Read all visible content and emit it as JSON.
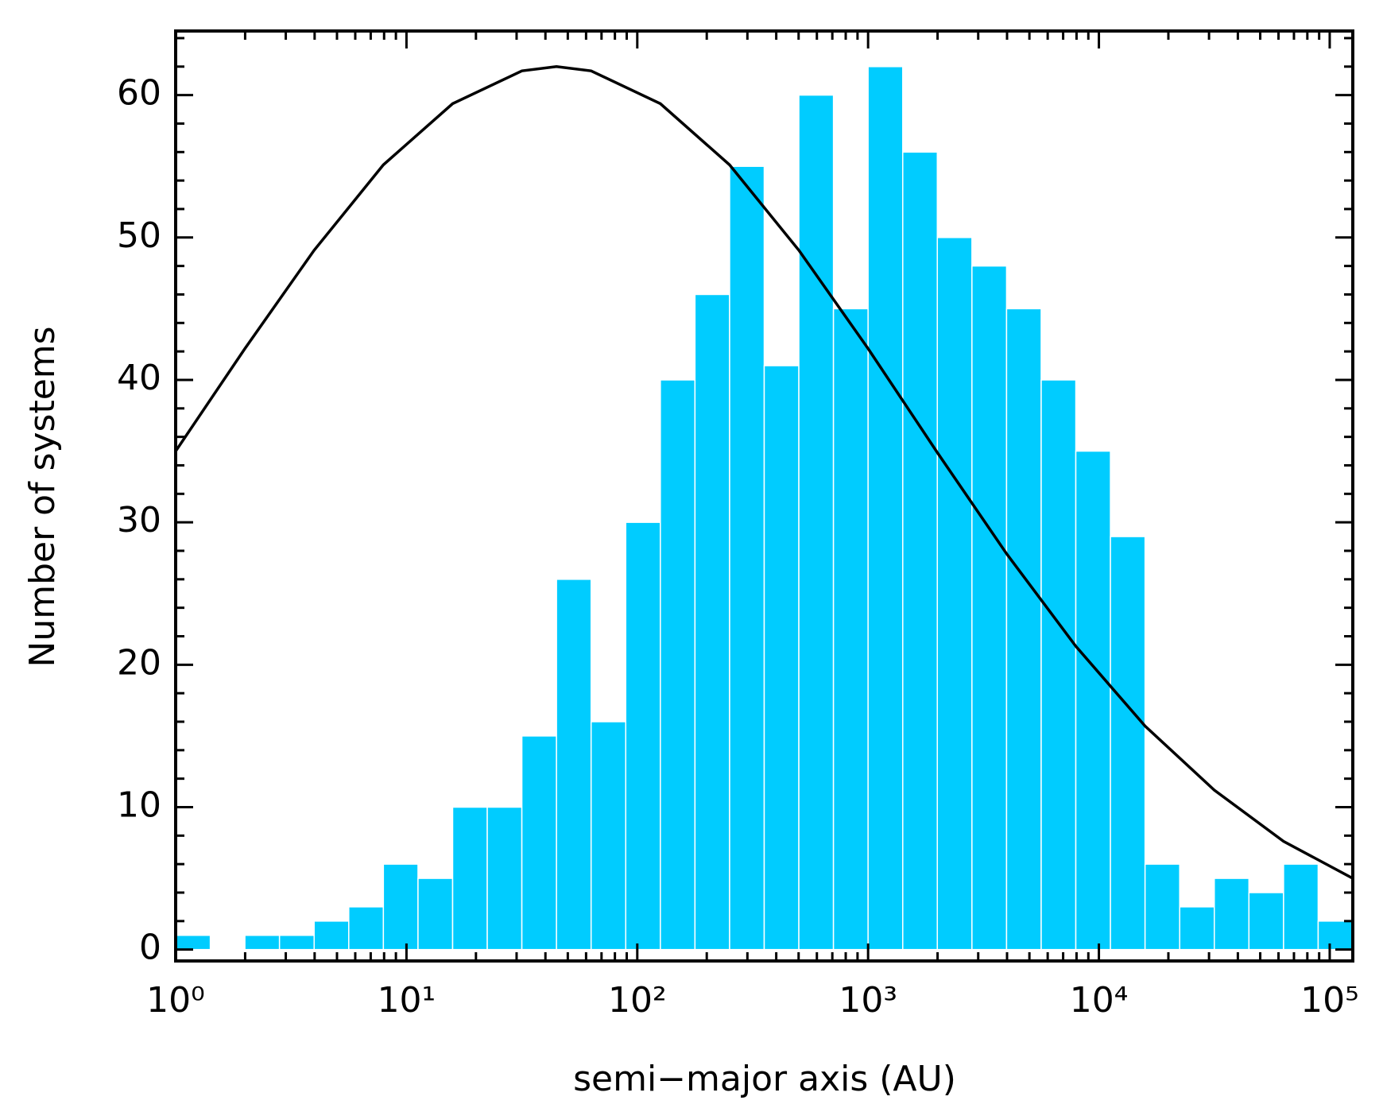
{
  "chart_data": {
    "type": "histogram",
    "xlabel": "semi−major axis (AU)",
    "ylabel": "Number of systems",
    "xscale": "log",
    "color": "#00ccff",
    "bins": [
      1,
      1.413,
      1.995,
      2.818,
      3.981,
      5.623,
      7.943,
      11.22,
      15.85,
      22.39,
      31.62,
      44.67,
      63.1,
      89.13,
      125.9,
      177.8,
      251.2,
      354.8,
      501.2,
      707.9,
      1000,
      1413,
      1995,
      2818,
      3981,
      5623,
      7943,
      11220,
      15850,
      22390,
      31620,
      44670,
      63100,
      89130,
      125900
    ],
    "values": [
      1,
      0,
      1,
      1,
      2,
      3,
      6,
      5,
      10,
      10,
      15,
      26,
      16,
      30,
      40,
      46,
      55,
      41,
      60,
      45,
      62,
      56,
      50,
      48,
      45,
      40,
      35,
      29,
      6,
      3,
      5,
      4,
      6,
      2
    ],
    "line": {
      "color": "#000000",
      "x": [
        1,
        1.995,
        3.981,
        7.943,
        15.85,
        31.62,
        44.67,
        63.1,
        125.9,
        251.2,
        501.2,
        1000,
        1995,
        3981,
        7943,
        15850,
        31620,
        63100,
        125900
      ],
      "values": [
        35.0,
        42.2,
        49.1,
        55.1,
        59.4,
        61.7,
        62.0,
        61.7,
        59.4,
        55.1,
        49.1,
        42.2,
        34.9,
        27.8,
        21.3,
        15.7,
        11.2,
        7.6,
        5.0
      ]
    },
    "xlim": [
      1,
      125900
    ],
    "ylim": [
      -0.8,
      64.5
    ],
    "xticks": [
      {
        "value": 1,
        "label": "10⁰"
      },
      {
        "value": 10,
        "label": "10¹"
      },
      {
        "value": 100,
        "label": "10²"
      },
      {
        "value": 1000,
        "label": "10³"
      },
      {
        "value": 10000,
        "label": "10⁴"
      },
      {
        "value": 100000,
        "label": "10⁵"
      }
    ],
    "xminor_ticks": [
      2,
      3,
      4,
      5,
      6,
      7,
      8,
      9,
      20,
      30,
      40,
      50,
      60,
      70,
      80,
      90,
      200,
      300,
      400,
      500,
      600,
      700,
      800,
      900,
      2000,
      3000,
      4000,
      5000,
      6000,
      7000,
      8000,
      9000,
      20000,
      30000,
      40000,
      50000,
      60000,
      70000,
      80000,
      90000
    ],
    "yticks": [
      0,
      10,
      20,
      30,
      40,
      50,
      60
    ],
    "yminor_ticks": [
      2,
      4,
      6,
      8,
      12,
      14,
      16,
      18,
      22,
      24,
      26,
      28,
      32,
      34,
      36,
      38,
      42,
      44,
      46,
      48,
      52,
      54,
      56,
      58,
      62,
      64
    ]
  }
}
